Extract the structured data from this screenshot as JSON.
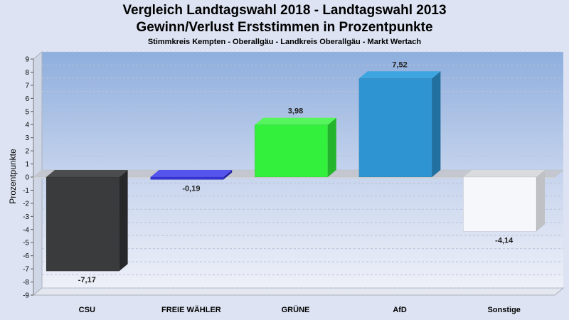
{
  "chart_data": {
    "type": "bar",
    "title": "Vergleich Landtagswahl 2018 - Landtagswahl 2013",
    "subtitle": "Gewinn/Verlust Erststimmen in Prozentpunkte",
    "subsubtitle": "Stimmkreis Kempten - Oberallgäu - Landkreis Oberallgäu - Markt Wertach",
    "ylabel": "Prozentpunkte",
    "xlabel": "",
    "ylim": [
      -9,
      9
    ],
    "yticks": [
      9,
      8,
      7,
      6,
      5,
      4,
      3,
      2,
      1,
      0,
      -1,
      -2,
      -3,
      -4,
      -5,
      -6,
      -7,
      -8,
      -9
    ],
    "categories": [
      "CSU",
      "FREIE WÄHLER",
      "GRÜNE",
      "AfD",
      "Sonstige"
    ],
    "values": [
      -7.17,
      -0.19,
      3.98,
      7.52,
      -4.14
    ],
    "value_labels": [
      "-7,17",
      "-0,19",
      "3,98",
      "7,52",
      "-4,14"
    ],
    "colors": [
      "#393b3d",
      "#3535d8",
      "#33f03c",
      "#2f95d2",
      "#f6f7fa"
    ],
    "side_colors": [
      "#26282a",
      "#2424a0",
      "#25b52d",
      "#22709f",
      "#c0c1c4"
    ],
    "top_colors": [
      "#4a4c4e",
      "#5555ee",
      "#55f55e",
      "#3da5e0",
      "#dadbde"
    ],
    "grid": true,
    "legend": "none"
  }
}
